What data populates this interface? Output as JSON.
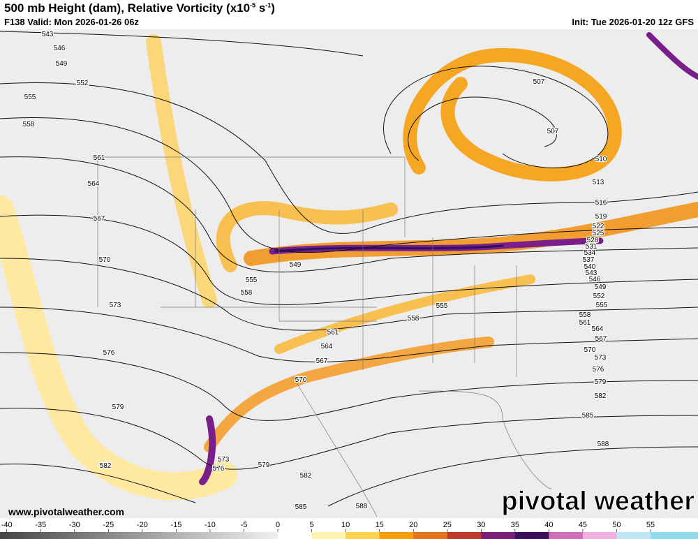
{
  "header": {
    "title": {
      "text": "500 mb Height (dam), Relative Vorticity (x10",
      "exp1": "-5",
      "mid": " s",
      "exp2": "-1",
      "end": ")"
    },
    "valid": "F138 Valid: Mon 2026-01-26 06z",
    "init": "Init: Tue 2026-01-20 12z GFS"
  },
  "contour_labels": [
    "543",
    "546",
    "549",
    "552",
    "555",
    "558",
    "561",
    "564",
    "567",
    "570",
    "573",
    "576",
    "579",
    "582",
    "549",
    "555",
    "558",
    "561",
    "564",
    "567",
    "570",
    "555",
    "558",
    "507",
    "507",
    "510",
    "513",
    "516",
    "519",
    "522",
    "525",
    "528",
    "531",
    "534",
    "537",
    "540",
    "543",
    "546",
    "549",
    "552",
    "555",
    "558",
    "561",
    "564",
    "567",
    "570",
    "573",
    "576",
    "579",
    "582",
    "585",
    "588",
    "573",
    "576",
    "579",
    "582",
    "585",
    "588"
  ],
  "footer": {
    "website": "www.pivotalweather.com",
    "logo": "pivotal weather"
  },
  "colorbar": {
    "lim": [
      -41,
      62
    ],
    "ticks": [
      -40,
      -35,
      -30,
      -25,
      -20,
      -15,
      -10,
      -5,
      0,
      5,
      10,
      15,
      20,
      25,
      30,
      35,
      40,
      45,
      50,
      55
    ]
  }
}
